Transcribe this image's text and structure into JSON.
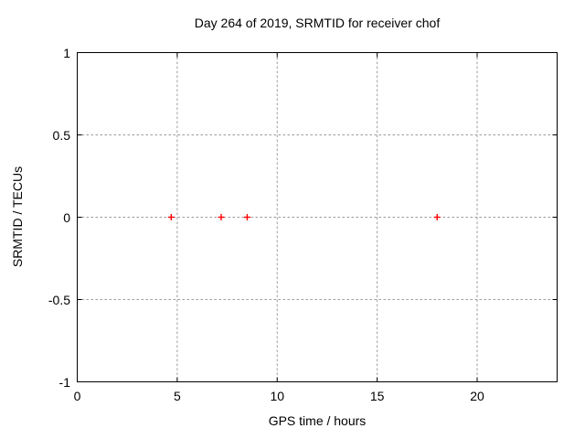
{
  "colors": {
    "background": "#ffffff",
    "text": "#000000",
    "axis": "#000000",
    "grid": "#9b9b9b",
    "marker": "#ff0000"
  },
  "chart_data": {
    "type": "scatter",
    "title": "Day 264 of 2019, SRMTID for receiver chof",
    "xlabel": "GPS time / hours",
    "ylabel": "SRMTID / TECUs",
    "xlim": [
      0,
      24
    ],
    "ylim": [
      -1,
      1
    ],
    "xticks": [
      0,
      5,
      10,
      15,
      20
    ],
    "xtick_labels": [
      "0",
      "5",
      "10",
      "15",
      "20"
    ],
    "yticks": [
      -1,
      -0.5,
      0,
      0.5,
      1
    ],
    "ytick_labels": [
      "-1",
      "-0.5",
      "0",
      "0.5",
      "1"
    ],
    "grid": true,
    "grid_style": "dashed",
    "legend_position": "none",
    "series": [
      {
        "name": "SRMTID",
        "marker": "plus",
        "color": "#ff0000",
        "points": [
          [
            4.7,
            0
          ],
          [
            7.2,
            0
          ],
          [
            8.5,
            0
          ],
          [
            18.0,
            0
          ]
        ]
      }
    ]
  }
}
